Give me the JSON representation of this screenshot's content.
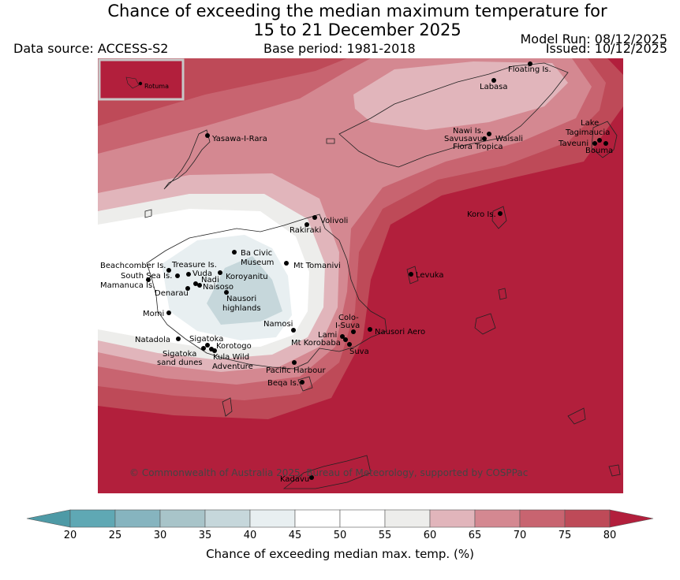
{
  "title": {
    "line1": "Chance of exceeding the median maximum temperature for",
    "line2": "15 to 21 December 2025"
  },
  "header": {
    "data_source": "Data source: ACCESS-S2",
    "base_period": "Base period: 1981-2018",
    "model_run": "Model Run: 08/12/2025",
    "issued": "Issued: 10/12/2025"
  },
  "map": {
    "inset_label": "Rotuma",
    "copyright": "© Commonwealth of Australia 2025, Bureau of Meteorology, supported by COSPPac",
    "places": [
      {
        "name": "Floating Is."
      },
      {
        "name": "Labasa"
      },
      {
        "name": "Yasawa-I-Rara"
      },
      {
        "name": "Nawi Is."
      },
      {
        "name": "Savusavu"
      },
      {
        "name": "Waisali"
      },
      {
        "name": "Flora Tropica"
      },
      {
        "name": "Lake"
      },
      {
        "name": "Tagimaucia"
      },
      {
        "name": "Taveuni"
      },
      {
        "name": "Bouma"
      },
      {
        "name": "Koro Is."
      },
      {
        "name": "Volivoli"
      },
      {
        "name": "Rakiraki"
      },
      {
        "name": "Ba Civic"
      },
      {
        "name": "Museum"
      },
      {
        "name": "Mt Tomanivi"
      },
      {
        "name": "Beachcomber Is."
      },
      {
        "name": "Treasure Is."
      },
      {
        "name": "South Sea Is."
      },
      {
        "name": "Vuda"
      },
      {
        "name": "Koroyanitu"
      },
      {
        "name": "Nadi"
      },
      {
        "name": "Mamanuca Is."
      },
      {
        "name": "Naisoso"
      },
      {
        "name": "Denarau"
      },
      {
        "name": "Nausori"
      },
      {
        "name": "highlands"
      },
      {
        "name": "Levuka"
      },
      {
        "name": "Momi"
      },
      {
        "name": "Colo-"
      },
      {
        "name": "I-Suva"
      },
      {
        "name": "Namosi"
      },
      {
        "name": "Lami"
      },
      {
        "name": "Nausori Aero"
      },
      {
        "name": "Natadola"
      },
      {
        "name": "Sigatoka"
      },
      {
        "name": "Mt Korobaba"
      },
      {
        "name": "Korotogo"
      },
      {
        "name": "Suva"
      },
      {
        "name": "sand dunes"
      },
      {
        "name": "Kula Wild"
      },
      {
        "name": "Adventure"
      },
      {
        "name": "Pacific Harbour"
      },
      {
        "name": "Beqa Is."
      },
      {
        "name": "Kadavu"
      }
    ]
  },
  "colorbar": {
    "label": "Chance of exceeding median max. temp. (%)",
    "ticks": [
      "20",
      "25",
      "30",
      "35",
      "40",
      "45",
      "50",
      "55",
      "60",
      "65",
      "70",
      "75",
      "80"
    ],
    "colors": [
      "#5fa8b4",
      "#86b4bf",
      "#a8c4c9",
      "#c6d7db",
      "#e8eff1",
      "#ffffff",
      "#ffffff",
      "#ededeb",
      "#e1b5bb",
      "#d48891",
      "#c86470",
      "#be4a58",
      "#b21f3c"
    ],
    "lower_color": "#4e9aa6",
    "upper_color": "#b21f3c"
  }
}
